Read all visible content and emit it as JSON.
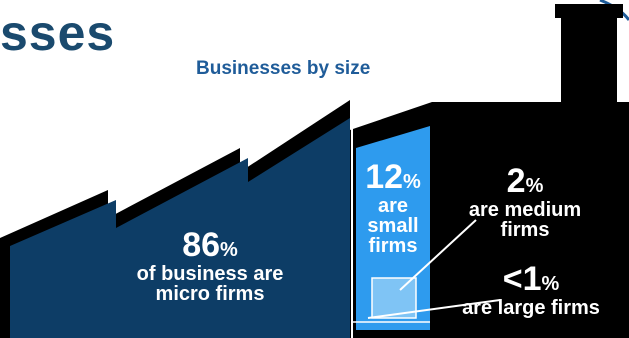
{
  "heading": "sses",
  "subtitle": "Businesses by size",
  "side_text": ":",
  "segments": {
    "micro": {
      "value": "86",
      "unit": "%",
      "line1": "of business are",
      "line2": "micro firms"
    },
    "small": {
      "value": "12",
      "unit": "%",
      "line1": "are",
      "line2": "small",
      "line3": "firms"
    },
    "medium": {
      "value": "2",
      "unit": "%",
      "line1": "are medium",
      "line2": "firms"
    },
    "large": {
      "value": "<1",
      "unit": "%",
      "line1": "are large firms"
    }
  },
  "colors": {
    "micro": "#0d3d66",
    "small": "#2e9bee",
    "outline": "#000000",
    "heading": "#1a4a6e",
    "subtitle": "#1f5c99"
  }
}
